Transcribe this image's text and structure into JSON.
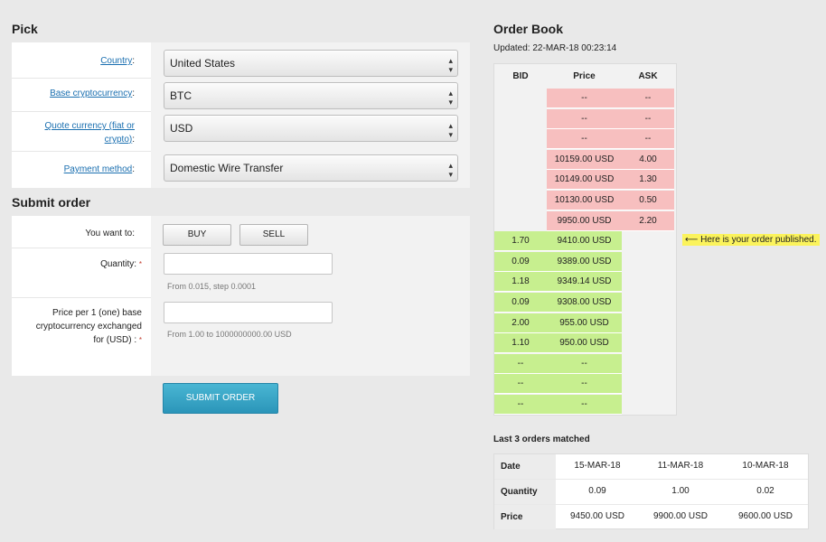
{
  "pick": {
    "title": "Pick",
    "country_label": "Country",
    "country_value": "United States",
    "base_label": "Base cryptocurrency",
    "base_value": "BTC",
    "quote_label_1": "Quote currency (fiat or",
    "quote_label_2": "crypto)",
    "quote_value": "USD",
    "payment_label": "Payment method",
    "payment_value": "Domestic Wire Transfer"
  },
  "submit": {
    "title": "Submit order",
    "want_label": "You want to:",
    "buy_label": "BUY",
    "sell_label": "SELL",
    "quantity_label": "Quantity:",
    "quantity_hint": "From 0.015, step 0.0001",
    "price_label_1": "Price per 1 (one) base",
    "price_label_2": "cryptocurrency exchanged",
    "price_label_3": "for (USD) :",
    "price_hint": "From 1.00 to 1000000000.00 USD",
    "submit_label": "SUBMIT ORDER"
  },
  "orderbook": {
    "title": "Order Book",
    "updated": "Updated: 22-MAR-18 00:23:14",
    "col_bid": "BID",
    "col_price": "Price",
    "col_ask": "ASK",
    "asks": [
      {
        "price": "--",
        "ask": "--"
      },
      {
        "price": "--",
        "ask": "--"
      },
      {
        "price": "--",
        "ask": "--"
      },
      {
        "price": "10159.00 USD",
        "ask": "4.00"
      },
      {
        "price": "10149.00 USD",
        "ask": "1.30"
      },
      {
        "price": "10130.00 USD",
        "ask": "0.50"
      },
      {
        "price": "9950.00 USD",
        "ask": "2.20"
      }
    ],
    "bids": [
      {
        "bid": "1.70",
        "price": "9410.00 USD"
      },
      {
        "bid": "0.09",
        "price": "9389.00 USD"
      },
      {
        "bid": "1.18",
        "price": "9349.14 USD"
      },
      {
        "bid": "0.09",
        "price": "9308.00 USD"
      },
      {
        "bid": "2.00",
        "price": "955.00 USD"
      },
      {
        "bid": "1.10",
        "price": "950.00 USD"
      },
      {
        "bid": "--",
        "price": "--"
      },
      {
        "bid": "--",
        "price": "--"
      },
      {
        "bid": "--",
        "price": "--"
      }
    ],
    "note": "Here is your order published."
  },
  "matched": {
    "title": "Last 3 orders matched",
    "date_label": "Date",
    "quantity_label": "Quantity",
    "price_label": "Price",
    "dates": [
      "15-MAR-18",
      "11-MAR-18",
      "10-MAR-18"
    ],
    "quantities": [
      "0.09",
      "1.00",
      "0.02"
    ],
    "prices": [
      "9450.00 USD",
      "9900.00 USD",
      "9600.00 USD"
    ]
  }
}
